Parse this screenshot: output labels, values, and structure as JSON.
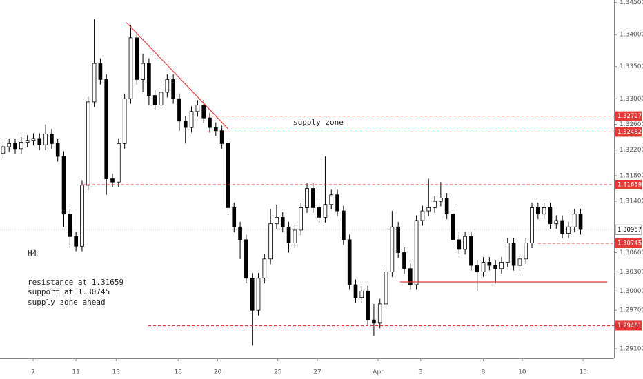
{
  "chart_data": {
    "type": "candlestick",
    "up_color": "#ffffff",
    "down_color": "#000000",
    "edge_color": "#000000",
    "open": [
      1.3215,
      1.3225,
      1.323,
      1.3222,
      1.3232,
      1.3235,
      1.3238,
      1.3228,
      1.3245,
      1.323,
      1.321,
      1.312,
      1.3085,
      1.307,
      1.3165,
      1.3295,
      1.3355,
      1.333,
      1.3175,
      1.317,
      1.323,
      1.33,
      1.3395,
      1.333,
      1.3355,
      1.3305,
      1.329,
      1.331,
      1.333,
      1.33,
      1.3265,
      1.3255,
      1.328,
      1.329,
      1.327,
      1.3255,
      1.325,
      1.323,
      1.313,
      1.31,
      1.308,
      1.302,
      1.297,
      1.302,
      1.305,
      1.3105,
      1.3115,
      1.31,
      1.3075,
      1.3095,
      1.313,
      1.316,
      1.313,
      1.3115,
      1.3135,
      1.315,
      1.3125,
      1.308,
      1.301,
      1.299,
      1.3,
      1.2955,
      1.295,
      1.298,
      1.303,
      1.31,
      1.306,
      1.3035,
      1.301,
      1.311,
      1.3125,
      1.313,
      1.314,
      1.3145,
      1.312,
      1.308,
      1.3065,
      1.3085,
      1.304,
      1.303,
      1.3045,
      1.304,
      1.3035,
      1.3045,
      1.3075,
      1.304,
      1.305,
      1.3075,
      1.313,
      1.312,
      1.313,
      1.3105,
      1.311,
      1.309,
      1.31,
      1.312
    ],
    "high": [
      1.3233,
      1.3238,
      1.3238,
      1.324,
      1.3243,
      1.3246,
      1.3246,
      1.326,
      1.3253,
      1.3238,
      1.3218,
      1.3128,
      1.3093,
      1.3173,
      1.3303,
      1.3424,
      1.3363,
      1.3338,
      1.3183,
      1.3238,
      1.3308,
      1.3415,
      1.3403,
      1.337,
      1.3363,
      1.3313,
      1.3318,
      1.3338,
      1.3338,
      1.3308,
      1.3273,
      1.3288,
      1.3298,
      1.3298,
      1.3278,
      1.3263,
      1.3258,
      1.3238,
      1.3138,
      1.3108,
      1.3088,
      1.3028,
      1.3028,
      1.3058,
      1.3128,
      1.3135,
      1.3123,
      1.3108,
      1.3103,
      1.3138,
      1.3168,
      1.3168,
      1.3138,
      1.321,
      1.3158,
      1.3158,
      1.3133,
      1.3088,
      1.3018,
      1.3008,
      1.3008,
      1.298,
      1.2988,
      1.3038,
      1.3125,
      1.3108,
      1.3068,
      1.3043,
      1.3118,
      1.3133,
      1.3175,
      1.3148,
      1.317,
      1.3153,
      1.3128,
      1.3088,
      1.3093,
      1.3093,
      1.3048,
      1.3053,
      1.3053,
      1.3048,
      1.3053,
      1.3083,
      1.3083,
      1.3058,
      1.3083,
      1.3138,
      1.3138,
      1.3138,
      1.3138,
      1.3118,
      1.3118,
      1.3108,
      1.3128,
      1.3128
    ],
    "low": [
      1.3207,
      1.3217,
      1.3214,
      1.3214,
      1.3224,
      1.3227,
      1.322,
      1.322,
      1.3222,
      1.3202,
      1.31,
      1.3068,
      1.3062,
      1.3062,
      1.3157,
      1.3287,
      1.3322,
      1.315,
      1.3162,
      1.3162,
      1.3222,
      1.3292,
      1.3322,
      1.331,
      1.329,
      1.3282,
      1.3282,
      1.3302,
      1.3292,
      1.325,
      1.323,
      1.3247,
      1.3272,
      1.3262,
      1.3247,
      1.3242,
      1.3222,
      1.3122,
      1.3092,
      1.305,
      1.3012,
      1.2915,
      1.2962,
      1.3012,
      1.3042,
      1.3097,
      1.3092,
      1.306,
      1.3067,
      1.3087,
      1.3122,
      1.3122,
      1.3107,
      1.3107,
      1.3127,
      1.3117,
      1.3072,
      1.3002,
      1.2982,
      1.2982,
      1.2947,
      1.293,
      1.2942,
      1.2972,
      1.3022,
      1.3052,
      1.3027,
      1.3002,
      1.3002,
      1.3102,
      1.3117,
      1.3122,
      1.3132,
      1.3112,
      1.3072,
      1.3057,
      1.3057,
      1.3032,
      1.3,
      1.3022,
      1.3032,
      1.3012,
      1.3027,
      1.3037,
      1.3032,
      1.3032,
      1.3042,
      1.3067,
      1.3112,
      1.3112,
      1.3097,
      1.3097,
      1.3082,
      1.3082,
      1.3092,
      1.3088
    ],
    "close": [
      1.3225,
      1.323,
      1.3222,
      1.3232,
      1.3235,
      1.3238,
      1.3228,
      1.3245,
      1.323,
      1.321,
      1.312,
      1.3085,
      1.307,
      1.3165,
      1.3295,
      1.3355,
      1.333,
      1.3175,
      1.317,
      1.323,
      1.33,
      1.3395,
      1.333,
      1.3355,
      1.3305,
      1.329,
      1.331,
      1.333,
      1.33,
      1.3265,
      1.3255,
      1.328,
      1.329,
      1.327,
      1.3255,
      1.325,
      1.323,
      1.313,
      1.31,
      1.308,
      1.302,
      1.297,
      1.302,
      1.305,
      1.3105,
      1.3115,
      1.31,
      1.3075,
      1.3095,
      1.313,
      1.316,
      1.313,
      1.3115,
      1.3135,
      1.315,
      1.3125,
      1.308,
      1.301,
      1.299,
      1.3,
      1.2955,
      1.295,
      1.298,
      1.303,
      1.31,
      1.306,
      1.3035,
      1.301,
      1.311,
      1.3125,
      1.313,
      1.314,
      1.3145,
      1.312,
      1.308,
      1.3065,
      1.3085,
      1.304,
      1.303,
      1.3045,
      1.304,
      1.3035,
      1.3045,
      1.3075,
      1.304,
      1.305,
      1.3075,
      1.313,
      1.312,
      1.313,
      1.3105,
      1.311,
      1.309,
      1.31,
      1.312,
      1.3096
    ],
    "xlim": [
      -0.5,
      100.5
    ],
    "xticks": [
      {
        "value": 4.95,
        "label": "7"
      },
      {
        "value": 12.0,
        "label": "11"
      },
      {
        "value": 18.6,
        "label": "13"
      },
      {
        "value": 28.8,
        "label": "18"
      },
      {
        "value": 35.3,
        "label": "20"
      },
      {
        "value": 45.2,
        "label": "25"
      },
      {
        "value": 51.7,
        "label": "27"
      },
      {
        "value": 61.7,
        "label": "Apr"
      },
      {
        "value": 68.7,
        "label": "3"
      },
      {
        "value": 79.0,
        "label": "8"
      },
      {
        "value": 85.4,
        "label": "10"
      },
      {
        "value": 95.4,
        "label": "15"
      }
    ],
    "ylim": [
      1.2895,
      1.3454
    ],
    "yticks": [
      {
        "value": 1.345,
        "label": "1.34500"
      },
      {
        "value": 1.34,
        "label": "1.34000"
      },
      {
        "value": 1.335,
        "label": "1.33500"
      },
      {
        "value": 1.33,
        "label": "1.33000"
      },
      {
        "value": 1.326,
        "label": "1.32600"
      },
      {
        "value": 1.322,
        "label": "1.32200"
      },
      {
        "value": 1.318,
        "label": "1.31800"
      },
      {
        "value": 1.314,
        "label": "1.31400"
      },
      {
        "value": 1.306,
        "label": "1.30600"
      },
      {
        "value": 1.303,
        "label": "1.30300"
      },
      {
        "value": 1.3,
        "label": "1.30000"
      },
      {
        "value": 1.297,
        "label": "1.29700"
      },
      {
        "value": 1.291,
        "label": "1.29100"
      }
    ],
    "level_color": "#e53935",
    "levels": [
      1.32727,
      1.32482,
      1.31659,
      1.30745,
      1.29461
    ],
    "level_starts": [
      33.6,
      33.6,
      13.1,
      88.0,
      23.9
    ],
    "current_price": 1.30957,
    "trendline": {
      "x": [
        20.3,
        37.0
      ],
      "y": [
        1.34188,
        1.32532
      ]
    },
    "support_line": {
      "x": [
        65.3,
        99.4
      ],
      "y": [
        1.30143,
        1.30143
      ]
    },
    "annotations": {
      "zone": "supply zone",
      "timeframe": "H4",
      "notes": [
        "resistance at 1.31659",
        "support at 1.30745",
        "supply zone ahead"
      ]
    }
  }
}
